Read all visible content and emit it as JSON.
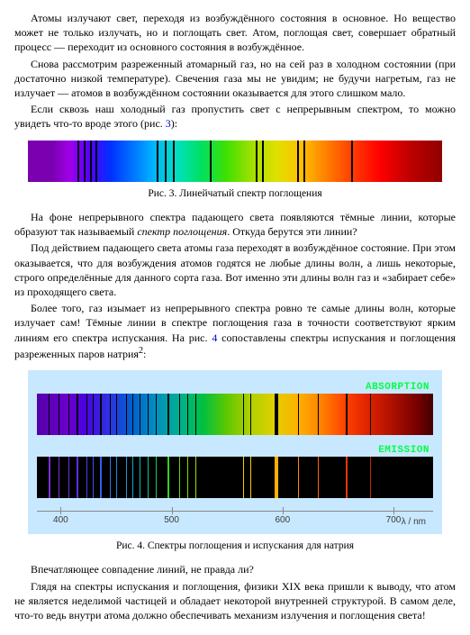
{
  "paragraphs": {
    "p1": "Атомы излучают свет, переходя из возбуждённого состояния в основное. Но вещество может не только излучать, но и поглощать свет. Атом, поглощая свет, совершает обратный процесс — переходит из основного состояния в возбуждённое.",
    "p2a": "Снова рассмотрим разреженный атомарный газ, но на сей раз в холодном состоянии (при достаточно низкой температуре). Свечения газа мы не увидим; не будучи нагретым, газ не излучает — атомов в возбуждённом состоянии оказывается для этого слишком мало.",
    "p3a": "Если сквозь наш холодный газ пропустить свет с непрерывным спектром, то можно увидеть что-то вроде этого (рис. ",
    "p3link": "3",
    "p3b": "):",
    "cap3": "Рис. 3. Линейчатый спектр поглощения",
    "p4a": "На фоне непрерывного спектра падающего света появляются тёмные линии, которые образуют так называемый ",
    "p4em": "спектр поглощения",
    "p4b": ". Откуда берутся эти линии?",
    "p5": "Под действием падающего света атомы газа переходят в возбуждённое состояние. При этом оказывается, что для возбуждения атомов годятся не любые длины волн, а лишь некоторые, строго определённые для данного сорта газа. Вот именно эти длины волн газ и «забирает себе» из проходящего света.",
    "p6a": "Более того, газ изымает из непрерывного спектра ровно те самые длины волн, которые излучает сам! Тёмные линии в спектре поглощения газа в точности соответствуют ярким линиям его спектра испускания. На рис. ",
    "p6link": "4",
    "p6b": " сопоставлены спектры испускания и поглощения разреженных паров натрия",
    "p6sup": "2",
    "p6c": ":",
    "lab_abs": "ABSORPTION",
    "lab_em": "EMISSION",
    "cap4": "Рис. 4. Спектры поглощения и испускания для натрия",
    "p7": "Впечатляющее совпадение линий, не правда ли?",
    "p8": "Глядя на спектры испускания и поглощения, физики XIX века пришли к выводу, что атом не является неделимой частицей и обладает некоторой внутренней структурой. В самом деле, что-то ведь внутри атома должно обеспечивать механизм излучения и поглощения света!"
  },
  "fig3": {
    "lines_pct": [
      12,
      13.5,
      15,
      16.2,
      31,
      33,
      35,
      44,
      55,
      56.5,
      65,
      66.5,
      78
    ]
  },
  "fig4": {
    "absorption_lines": [
      {
        "x": 3,
        "w": 1.2
      },
      {
        "x": 5.5,
        "w": 1
      },
      {
        "x": 8,
        "w": 1
      },
      {
        "x": 10,
        "w": 1.5
      },
      {
        "x": 12.5,
        "w": 1
      },
      {
        "x": 14,
        "w": 1
      },
      {
        "x": 16,
        "w": 1.5
      },
      {
        "x": 18.5,
        "w": 1
      },
      {
        "x": 20,
        "w": 1
      },
      {
        "x": 22.5,
        "w": 1
      },
      {
        "x": 24,
        "w": 1.5
      },
      {
        "x": 26,
        "w": 1
      },
      {
        "x": 28,
        "w": 1
      },
      {
        "x": 30,
        "w": 1
      },
      {
        "x": 33,
        "w": 1.5
      },
      {
        "x": 36,
        "w": 1
      },
      {
        "x": 38,
        "w": 1
      },
      {
        "x": 40,
        "w": 1
      },
      {
        "x": 52,
        "w": 1.5
      },
      {
        "x": 53.8,
        "w": 1.5
      },
      {
        "x": 60,
        "w": 4
      },
      {
        "x": 66,
        "w": 1
      },
      {
        "x": 71,
        "w": 1
      },
      {
        "x": 78,
        "w": 1.5
      },
      {
        "x": 84,
        "w": 1
      }
    ],
    "emission_lines": [
      {
        "x": 3,
        "w": 1.5,
        "c": "#7a30d8"
      },
      {
        "x": 5.5,
        "w": 1,
        "c": "#7a30d8"
      },
      {
        "x": 8,
        "w": 1,
        "c": "#6a30e0"
      },
      {
        "x": 10,
        "w": 1.5,
        "c": "#5a30e8"
      },
      {
        "x": 12.5,
        "w": 1,
        "c": "#4a40f0"
      },
      {
        "x": 14,
        "w": 1,
        "c": "#4050f0"
      },
      {
        "x": 16,
        "w": 1.5,
        "c": "#3060f0"
      },
      {
        "x": 18.5,
        "w": 1,
        "c": "#2878e0"
      },
      {
        "x": 20,
        "w": 1,
        "c": "#2088d8"
      },
      {
        "x": 22.5,
        "w": 1,
        "c": "#1898d0"
      },
      {
        "x": 24,
        "w": 1.5,
        "c": "#10a8c0"
      },
      {
        "x": 26,
        "w": 1,
        "c": "#10b8a8"
      },
      {
        "x": 28,
        "w": 1,
        "c": "#10c490"
      },
      {
        "x": 30,
        "w": 1,
        "c": "#18cc60"
      },
      {
        "x": 33,
        "w": 1.5,
        "c": "#38d020"
      },
      {
        "x": 36,
        "w": 1,
        "c": "#68d400"
      },
      {
        "x": 38,
        "w": 1,
        "c": "#88d800"
      },
      {
        "x": 40,
        "w": 1,
        "c": "#a0d800"
      },
      {
        "x": 52,
        "w": 1.5,
        "c": "#f0d000"
      },
      {
        "x": 53.8,
        "w": 1.5,
        "c": "#f8c800"
      },
      {
        "x": 60,
        "w": 4,
        "c": "#ffb000"
      },
      {
        "x": 66,
        "w": 1,
        "c": "#ff8800"
      },
      {
        "x": 71,
        "w": 1,
        "c": "#ff6000"
      },
      {
        "x": 78,
        "w": 1.5,
        "c": "#f03800"
      },
      {
        "x": 84,
        "w": 1,
        "c": "#d02000"
      }
    ],
    "axis": {
      "ticks": [
        {
          "x": 6,
          "label": "400"
        },
        {
          "x": 34,
          "label": "500"
        },
        {
          "x": 62,
          "label": "600"
        },
        {
          "x": 90,
          "label": "700"
        }
      ],
      "unit": "λ / nm"
    }
  }
}
